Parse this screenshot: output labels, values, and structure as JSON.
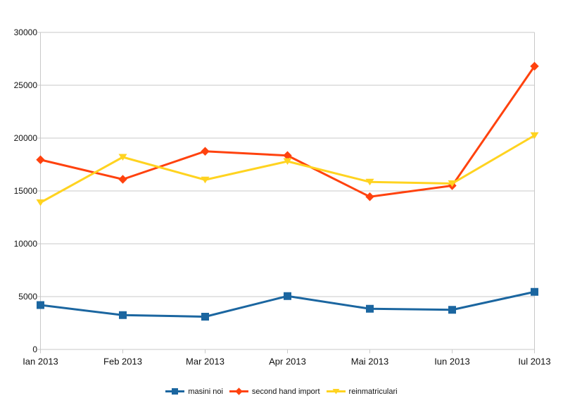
{
  "chart_data": {
    "type": "line",
    "categories": [
      "Ian 2013",
      "Feb 2013",
      "Mar 2013",
      "Apr 2013",
      "Mai 2013",
      "Iun 2013",
      "Iul 2013"
    ],
    "series": [
      {
        "name": "masini noi",
        "color": "#1b66a0",
        "marker": "square",
        "values": [
          4200,
          3250,
          3100,
          5050,
          3850,
          3750,
          5450
        ]
      },
      {
        "name": "second hand import",
        "color": "#ff420e",
        "marker": "diamond",
        "values": [
          17950,
          16100,
          18750,
          18350,
          14450,
          15500,
          26800
        ]
      },
      {
        "name": "reinmatriculari",
        "color": "#ffd320",
        "marker": "triangle-down",
        "values": [
          13900,
          18200,
          16050,
          17800,
          15850,
          15700,
          20250
        ]
      }
    ],
    "title": "",
    "xlabel": "",
    "ylabel": "",
    "ylim": [
      0,
      30000
    ],
    "ytick_step": 5000,
    "yticks": [
      "0",
      "5000",
      "10000",
      "15000",
      "20000",
      "25000",
      "30000"
    ],
    "grid": "horizontal",
    "gridline_color": "#c8c8c8",
    "axis_label_color": "#111111",
    "legend_position": "bottom"
  }
}
